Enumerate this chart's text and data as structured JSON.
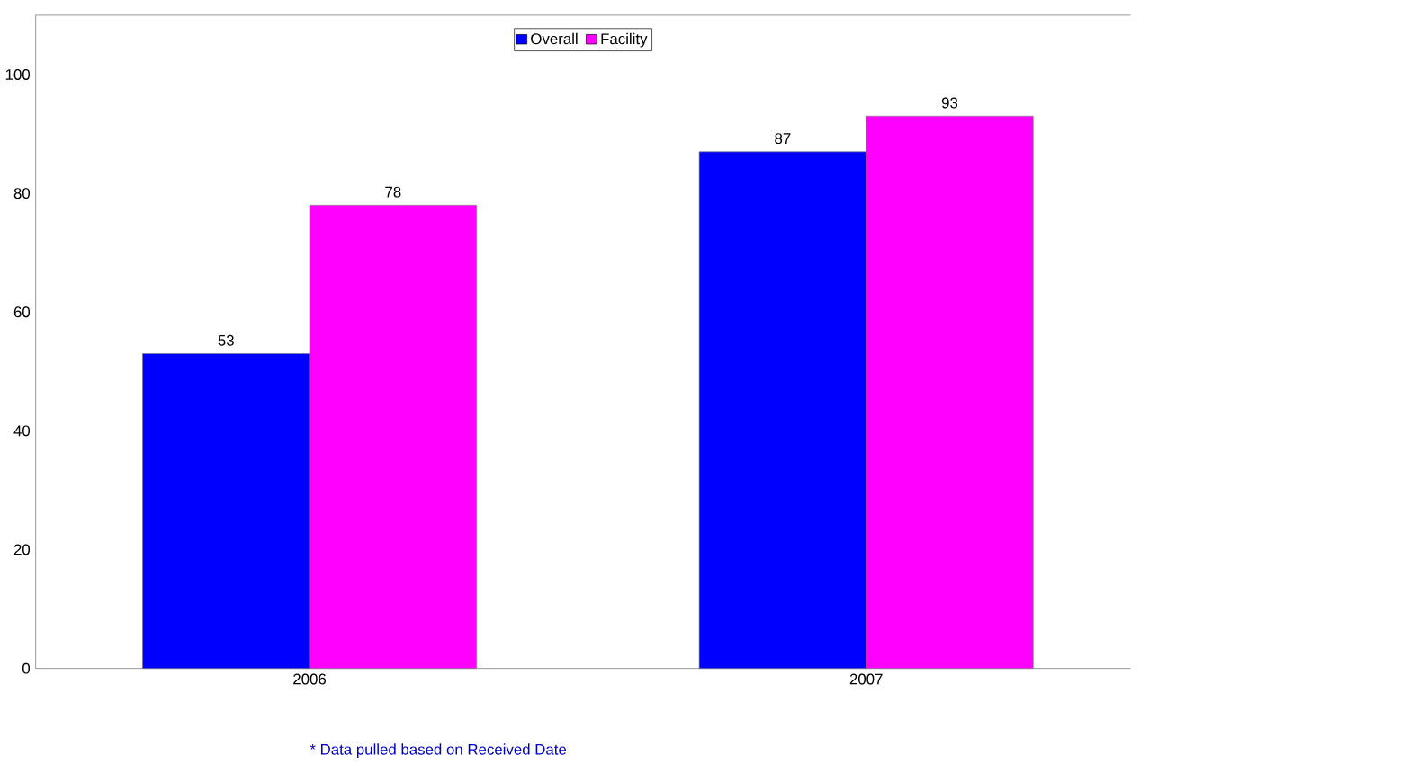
{
  "chart_data": {
    "type": "bar",
    "categories": [
      "2006",
      "2007"
    ],
    "series": [
      {
        "name": "Overall",
        "color": "#0000ff",
        "values": [
          53,
          87
        ]
      },
      {
        "name": "Facility",
        "color": "#ff00ff",
        "values": [
          78,
          93
        ]
      }
    ],
    "ylim": [
      0,
      110
    ],
    "yticks": [
      0,
      20,
      40,
      60,
      80,
      100
    ],
    "data_labels": true,
    "legend": "top",
    "grid": false,
    "annotations": [
      "* Data pulled based on Received Date"
    ]
  }
}
